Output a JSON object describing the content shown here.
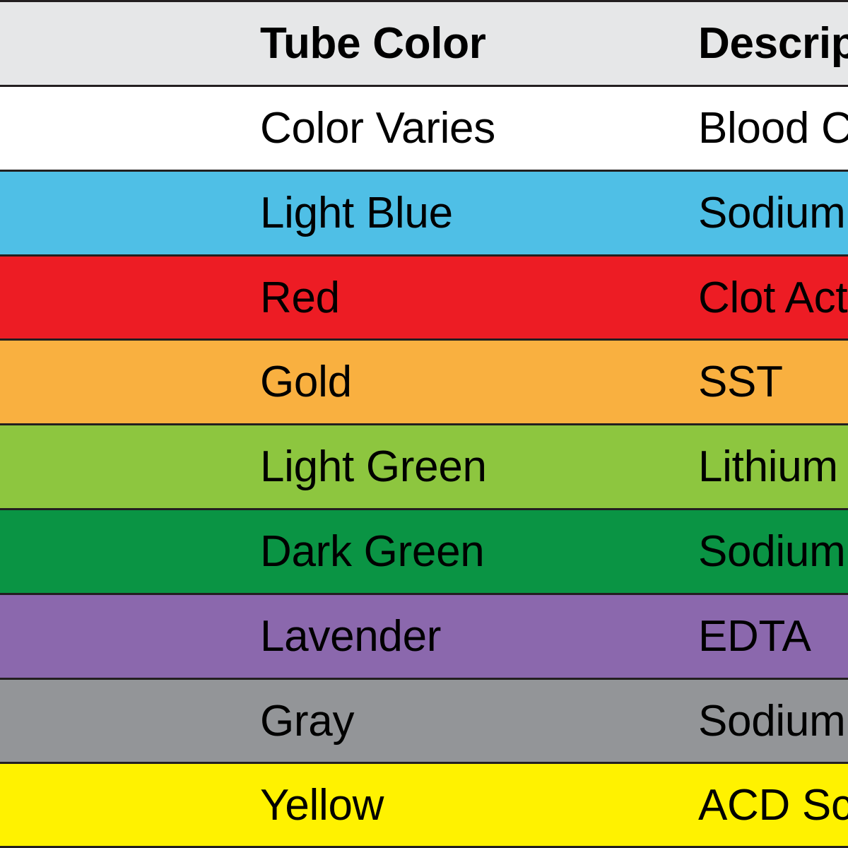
{
  "header": {
    "tube_color": "Tube Color",
    "description": "Descrip",
    "color": "#e6e7e8"
  },
  "table": {
    "rows": [
      {
        "tube_color": "Color Varies",
        "description": "Blood C",
        "color": "#ffffff"
      },
      {
        "tube_color": "Light Blue",
        "description": "Sodium",
        "color": "#4fbfe6"
      },
      {
        "tube_color": "Red",
        "description": "Clot Act",
        "color": "#ed1c24"
      },
      {
        "tube_color": "Gold",
        "description": "SST",
        "color": "#f9b040"
      },
      {
        "tube_color": "Light Green",
        "description": "Lithium",
        "color": "#8dc63f"
      },
      {
        "tube_color": "Dark Green",
        "description": "Sodium",
        "color": "#0a9444"
      },
      {
        "tube_color": "Lavender",
        "description": "EDTA",
        "color": "#8b68ad"
      },
      {
        "tube_color": "Gray",
        "description": "Sodium",
        "color": "#939598"
      },
      {
        "tube_color": "Yellow",
        "description": "ACD Sc",
        "color": "#fff200"
      }
    ]
  }
}
